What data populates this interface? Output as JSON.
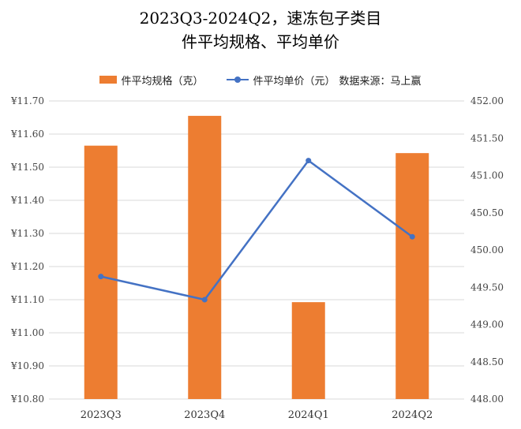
{
  "chart_data": {
    "type": "bar+line",
    "title": "2023Q3-2024Q2，速冻包子类目",
    "subtitle": "件平均规格、平均单价",
    "categories": [
      "2023Q3",
      "2023Q4",
      "2024Q1",
      "2024Q2"
    ],
    "series": [
      {
        "name": "件平均规格（克）",
        "type": "bar",
        "axis": "right",
        "color": "#ED7D31",
        "values": [
          451.4,
          451.8,
          449.3,
          451.3
        ]
      },
      {
        "name": "件平均单价（元）",
        "type": "line",
        "axis": "left",
        "color": "#4472C4",
        "values": [
          11.17,
          11.1,
          11.52,
          11.29
        ]
      }
    ],
    "source_note": "数据来源：马上赢",
    "left_axis": {
      "min": 10.8,
      "max": 11.7,
      "ticks": [
        "¥10.80",
        "¥10.90",
        "¥11.00",
        "¥11.10",
        "¥11.20",
        "¥11.30",
        "¥11.40",
        "¥11.50",
        "¥11.60",
        "¥11.70"
      ]
    },
    "right_axis": {
      "min": 448.0,
      "max": 452.0,
      "ticks": [
        "448.00",
        "448.50",
        "449.00",
        "449.50",
        "450.00",
        "450.50",
        "451.00",
        "451.50",
        "452.00"
      ]
    },
    "grid": true,
    "legend_position": "top"
  }
}
